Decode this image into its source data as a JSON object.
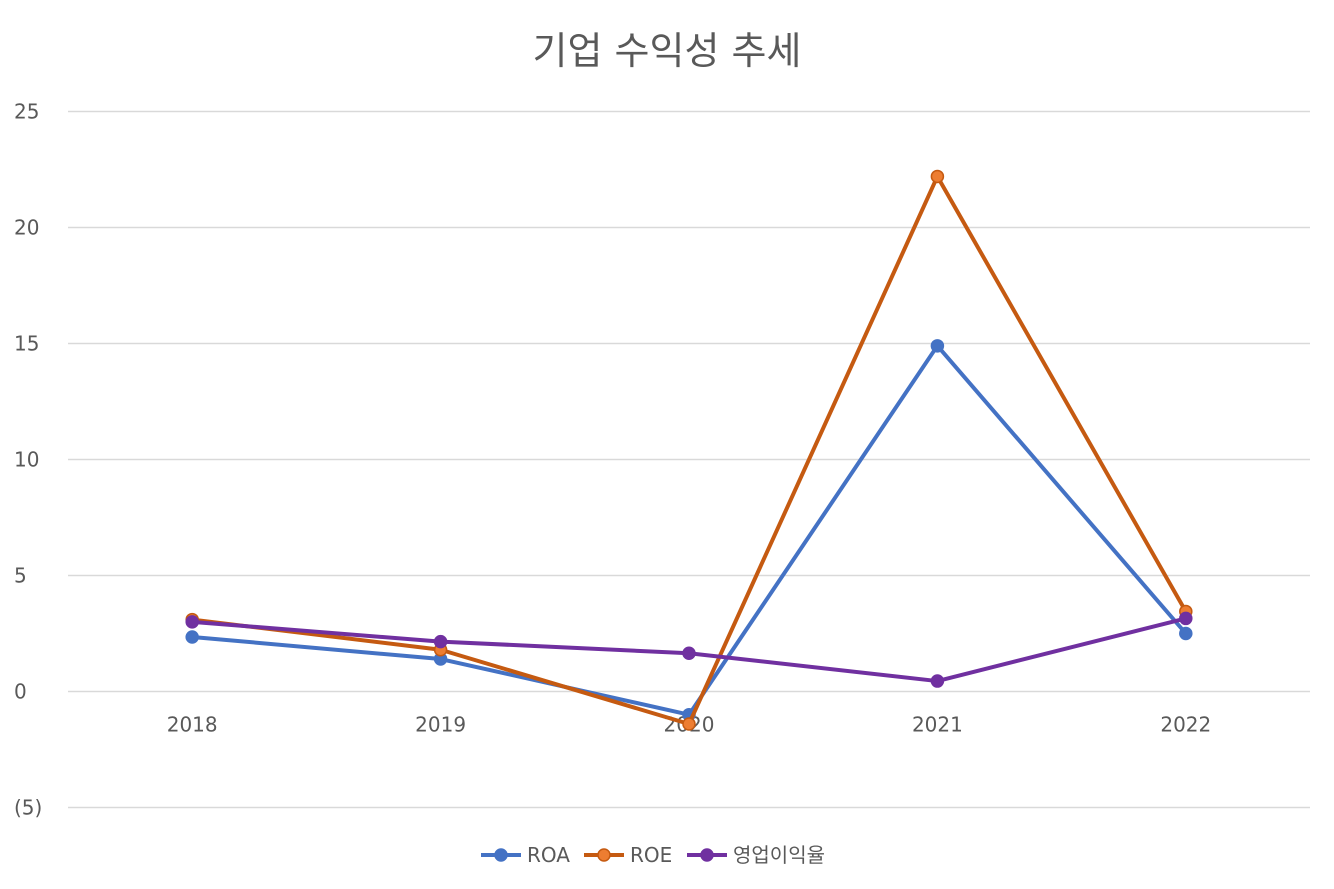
{
  "chart_data": {
    "type": "line",
    "title": "기업 수익성 추세",
    "xlabel": "",
    "ylabel": "",
    "categories": [
      "2018",
      "2019",
      "2020",
      "2021",
      "2022"
    ],
    "ylim": [
      -5,
      25
    ],
    "y_ticks": [
      25,
      20,
      15,
      10,
      5,
      0,
      -5
    ],
    "y_tick_labels": [
      "25",
      "20",
      "15",
      "10",
      "5",
      "0",
      "(5)"
    ],
    "grid": true,
    "legend_position": "bottom",
    "series": [
      {
        "name": "ROA",
        "color": "#4472C4",
        "values": [
          2.35,
          1.4,
          -1.0,
          14.9,
          2.5
        ]
      },
      {
        "name": "ROE",
        "color": "#C55A11",
        "marker_color": "#ED7D31",
        "values": [
          3.1,
          1.8,
          -1.4,
          22.2,
          3.45
        ]
      },
      {
        "name": "영업이익율",
        "color": "#7030A0",
        "values": [
          3.0,
          2.15,
          1.65,
          0.45,
          3.15
        ]
      }
    ]
  }
}
